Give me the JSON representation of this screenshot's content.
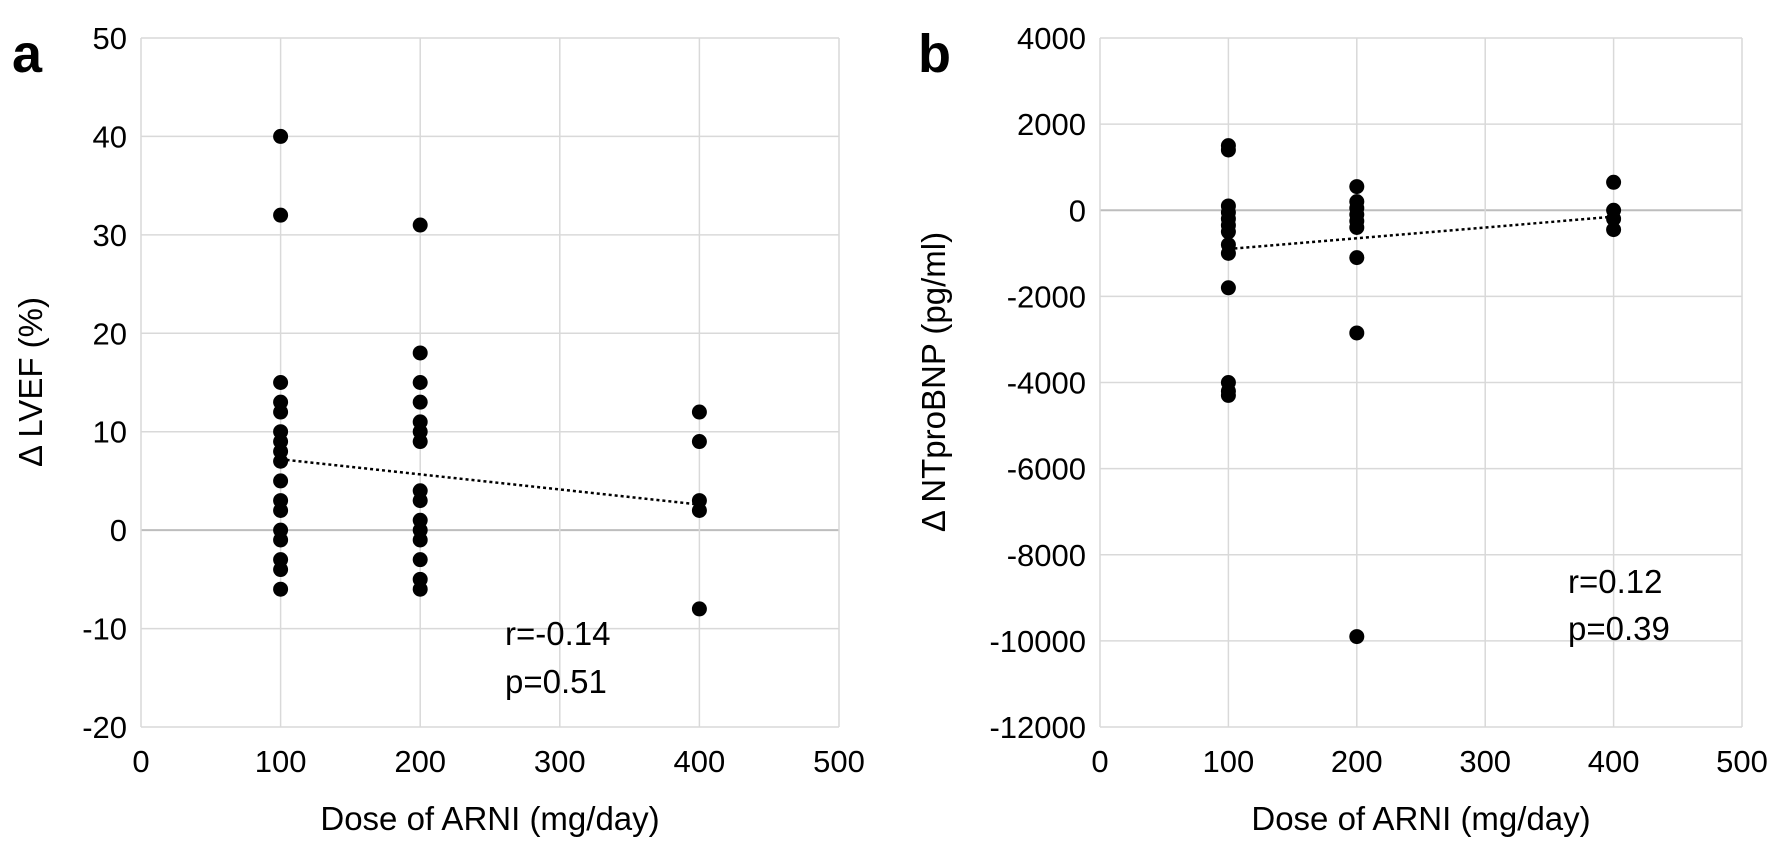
{
  "chart_data": [
    {
      "type": "scatter",
      "panel_label": "a",
      "xlabel": "Dose of ARNI (mg/day)",
      "ylabel": "Δ LVEF (%)",
      "xlim": [
        0,
        500
      ],
      "ylim": [
        -20,
        50
      ],
      "xticks": [
        0,
        100,
        200,
        300,
        400,
        500
      ],
      "yticks": [
        -20,
        -10,
        0,
        10,
        20,
        30,
        40,
        50
      ],
      "grid": true,
      "points": [
        {
          "x": 100,
          "y": 40
        },
        {
          "x": 100,
          "y": 32
        },
        {
          "x": 100,
          "y": 15
        },
        {
          "x": 100,
          "y": 13
        },
        {
          "x": 100,
          "y": 12
        },
        {
          "x": 100,
          "y": 10
        },
        {
          "x": 100,
          "y": 9
        },
        {
          "x": 100,
          "y": 8
        },
        {
          "x": 100,
          "y": 7
        },
        {
          "x": 100,
          "y": 5
        },
        {
          "x": 100,
          "y": 3
        },
        {
          "x": 100,
          "y": 2
        },
        {
          "x": 100,
          "y": 0
        },
        {
          "x": 100,
          "y": -1
        },
        {
          "x": 100,
          "y": -3
        },
        {
          "x": 100,
          "y": -4
        },
        {
          "x": 100,
          "y": -6
        },
        {
          "x": 200,
          "y": 31
        },
        {
          "x": 200,
          "y": 18
        },
        {
          "x": 200,
          "y": 15
        },
        {
          "x": 200,
          "y": 13
        },
        {
          "x": 200,
          "y": 11
        },
        {
          "x": 200,
          "y": 10
        },
        {
          "x": 200,
          "y": 9
        },
        {
          "x": 200,
          "y": 4
        },
        {
          "x": 200,
          "y": 3
        },
        {
          "x": 200,
          "y": 1
        },
        {
          "x": 200,
          "y": 0
        },
        {
          "x": 200,
          "y": -1
        },
        {
          "x": 200,
          "y": -3
        },
        {
          "x": 200,
          "y": -5
        },
        {
          "x": 200,
          "y": -6
        },
        {
          "x": 400,
          "y": 12
        },
        {
          "x": 400,
          "y": 9
        },
        {
          "x": 400,
          "y": 3
        },
        {
          "x": 400,
          "y": 2
        },
        {
          "x": 400,
          "y": -8
        }
      ],
      "trendline": {
        "x": [
          100,
          400
        ],
        "y": [
          7.2,
          2.6
        ]
      },
      "annotations": [
        "r=-0.14",
        "p=0.51"
      ]
    },
    {
      "type": "scatter",
      "panel_label": "b",
      "xlabel": "Dose of ARNI (mg/day)",
      "ylabel": "Δ NTproBNP (pg/ml)",
      "xlim": [
        0,
        500
      ],
      "ylim": [
        -12000,
        4000
      ],
      "xticks": [
        0,
        100,
        200,
        300,
        400,
        500
      ],
      "yticks": [
        -12000,
        -10000,
        -8000,
        -6000,
        -4000,
        -2000,
        0,
        2000,
        4000
      ],
      "grid": true,
      "points": [
        {
          "x": 100,
          "y": 1500
        },
        {
          "x": 100,
          "y": 1400
        },
        {
          "x": 100,
          "y": 100
        },
        {
          "x": 100,
          "y": -50
        },
        {
          "x": 100,
          "y": -200
        },
        {
          "x": 100,
          "y": -350
        },
        {
          "x": 100,
          "y": -500
        },
        {
          "x": 100,
          "y": -800
        },
        {
          "x": 100,
          "y": -1000
        },
        {
          "x": 100,
          "y": -1800
        },
        {
          "x": 100,
          "y": -4000
        },
        {
          "x": 100,
          "y": -4200
        },
        {
          "x": 100,
          "y": -4300
        },
        {
          "x": 200,
          "y": 550
        },
        {
          "x": 200,
          "y": 200
        },
        {
          "x": 200,
          "y": 50
        },
        {
          "x": 200,
          "y": -100
        },
        {
          "x": 200,
          "y": -250
        },
        {
          "x": 200,
          "y": -400
        },
        {
          "x": 200,
          "y": -1100
        },
        {
          "x": 200,
          "y": -2850
        },
        {
          "x": 200,
          "y": -9900
        },
        {
          "x": 400,
          "y": 650
        },
        {
          "x": 400,
          "y": 0
        },
        {
          "x": 400,
          "y": -200
        },
        {
          "x": 400,
          "y": -450
        }
      ],
      "trendline": {
        "x": [
          100,
          400
        ],
        "y": [
          -900,
          -150
        ]
      },
      "annotations": [
        "r=0.12",
        "p=0.39"
      ]
    }
  ]
}
